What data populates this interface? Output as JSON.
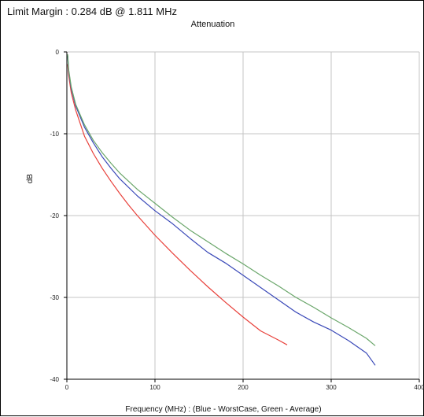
{
  "header": {
    "limit_margin": "Limit Margin : 0.284 dB @ 1.811 MHz"
  },
  "chart_data": {
    "type": "line",
    "title": "Attenuation",
    "xlabel": "Frequency (MHz) : (Blue - WorstCase, Green - Average)",
    "ylabel": "dB",
    "xlim": [
      0,
      400
    ],
    "ylim": [
      -40,
      0
    ],
    "xticks": [
      0,
      100,
      200,
      300,
      400
    ],
    "yticks": [
      0,
      -10,
      -20,
      -30,
      -40
    ],
    "grid": true,
    "series": [
      {
        "color": "#e8403a",
        "x": [
          1,
          2,
          5,
          10,
          20,
          30,
          40,
          50,
          60,
          70,
          80,
          90,
          100,
          120,
          140,
          160,
          180,
          200,
          220,
          240,
          250
        ],
        "y": [
          -1.5,
          -2.8,
          -5.0,
          -7.1,
          -10.3,
          -12.4,
          -14.2,
          -15.8,
          -17.3,
          -18.7,
          -20.0,
          -21.2,
          -22.4,
          -24.6,
          -26.7,
          -28.7,
          -30.6,
          -32.4,
          -34.1,
          -35.2,
          -35.8
        ]
      },
      {
        "color": "#3a49b8",
        "x": [
          1,
          2,
          5,
          10,
          20,
          30,
          40,
          50,
          60,
          80,
          100,
          120,
          140,
          160,
          180,
          200,
          220,
          240,
          260,
          280,
          300,
          320,
          340,
          350
        ],
        "y": [
          -0.5,
          -2.3,
          -4.5,
          -6.6,
          -9.2,
          -11.1,
          -12.8,
          -14.2,
          -15.5,
          -17.6,
          -19.4,
          -21.0,
          -22.8,
          -24.5,
          -25.8,
          -27.3,
          -28.8,
          -30.3,
          -31.8,
          -33.0,
          -34.0,
          -35.3,
          -36.8,
          -38.3
        ]
      },
      {
        "color": "#6aa66a",
        "x": [
          1,
          2,
          5,
          10,
          20,
          30,
          40,
          50,
          60,
          80,
          100,
          120,
          140,
          160,
          180,
          200,
          220,
          240,
          260,
          280,
          300,
          320,
          340,
          350
        ],
        "y": [
          -0.3,
          -2.1,
          -4.3,
          -6.4,
          -8.9,
          -10.8,
          -12.3,
          -13.6,
          -14.8,
          -16.8,
          -18.5,
          -20.2,
          -21.8,
          -23.2,
          -24.6,
          -25.9,
          -27.3,
          -28.6,
          -30.0,
          -31.2,
          -32.5,
          -33.7,
          -35.0,
          -35.9
        ]
      }
    ]
  }
}
